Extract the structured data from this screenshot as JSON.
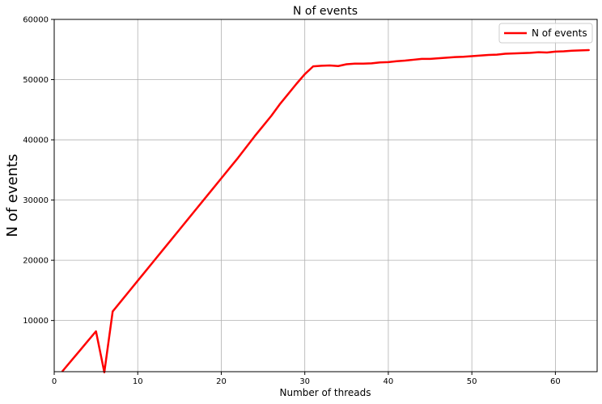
{
  "chart_data": {
    "type": "line",
    "title": "N of events",
    "xlabel": "Number of threads",
    "ylabel": "N of events",
    "xlim": [
      0,
      65
    ],
    "ylim": [
      1500,
      60000
    ],
    "xticks": [
      0,
      10,
      20,
      30,
      40,
      50,
      60
    ],
    "yticks": [
      10000,
      20000,
      30000,
      40000,
      50000,
      60000
    ],
    "grid": true,
    "legend_position": "top-right",
    "series": [
      {
        "name": "N of events",
        "color": "#ff0000",
        "x": [
          1,
          2,
          3,
          4,
          5,
          6,
          7,
          8,
          9,
          10,
          11,
          12,
          13,
          14,
          15,
          16,
          17,
          18,
          19,
          20,
          21,
          22,
          23,
          24,
          25,
          26,
          27,
          28,
          29,
          30,
          31,
          32,
          33,
          34,
          35,
          36,
          37,
          38,
          39,
          40,
          41,
          42,
          43,
          44,
          45,
          46,
          47,
          48,
          49,
          50,
          51,
          52,
          53,
          54,
          55,
          56,
          57,
          58,
          59,
          60,
          61,
          62,
          63,
          64
        ],
        "y": [
          1600,
          3250,
          4900,
          6550,
          8200,
          1400,
          11500,
          13200,
          14900,
          16600,
          18300,
          20000,
          21700,
          23400,
          25100,
          26800,
          28500,
          30200,
          31900,
          33600,
          35300,
          37000,
          38800,
          40600,
          42300,
          44000,
          45900,
          47600,
          49300,
          50900,
          52200,
          52300,
          52350,
          52250,
          52550,
          52650,
          52650,
          52700,
          52850,
          52900,
          53050,
          53150,
          53300,
          53450,
          53450,
          53550,
          53650,
          53750,
          53800,
          53900,
          54000,
          54100,
          54150,
          54300,
          54350,
          54400,
          54450,
          54550,
          54500,
          54650,
          54700,
          54800,
          54850,
          54900
        ]
      }
    ]
  }
}
